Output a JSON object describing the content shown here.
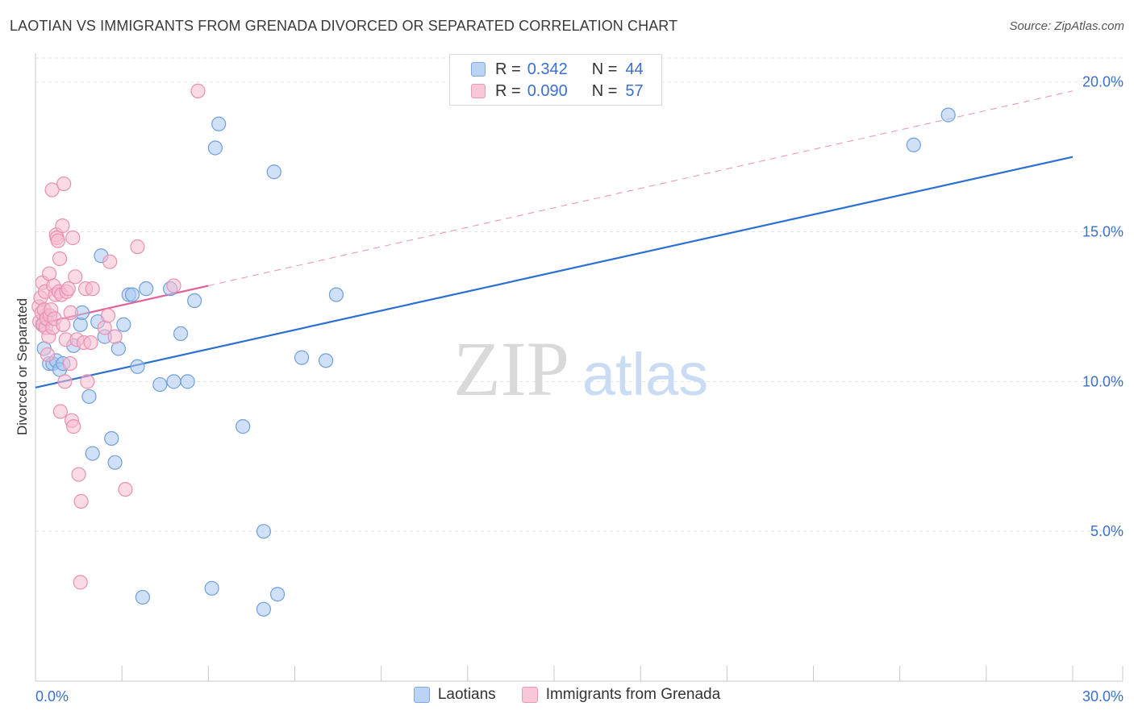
{
  "title": "LAOTIAN VS IMMIGRANTS FROM GRENADA DIVORCED OR SEPARATED CORRELATION CHART",
  "source": "Source: ZipAtlas.com",
  "watermark": {
    "zip": "ZIP",
    "atlas": "atlas"
  },
  "legend": {
    "rows": [
      {
        "r_label": "R =",
        "r_value": "0.342",
        "n_label": "N =",
        "n_value": "44"
      },
      {
        "r_label": "R =",
        "r_value": "0.090",
        "n_label": "N =",
        "n_value": "57"
      }
    ]
  },
  "colors": {
    "blue_fill": "#a9c8f0",
    "blue_stroke": "#6f9fdc",
    "blue_line": "#2b6fd0",
    "pink_fill": "#f6bcd0",
    "pink_stroke": "#e98fb0",
    "pink_line": "#e2609a",
    "axis_label": "#3a6fd1",
    "grid": "#e3e3e3"
  },
  "chart_data": {
    "type": "scatter",
    "title": "LAOTIAN VS IMMIGRANTS FROM GRENADA DIVORCED OR SEPARATED CORRELATION CHART",
    "xlabel": "",
    "ylabel": "Divorced or Separated",
    "xlim": [
      0,
      30
    ],
    "ylim": [
      0,
      20.8
    ],
    "x_tick_labels": [
      "0.0%",
      "30.0%"
    ],
    "y_ticks": [
      5,
      10,
      15,
      20
    ],
    "y_tick_labels": [
      "5.0%",
      "10.0%",
      "15.0%",
      "20.0%"
    ],
    "grid": true,
    "legend_position": "top-center",
    "series": [
      {
        "name": "Laotians",
        "color": "#a9c8f0",
        "points": [
          [
            0.2,
            11.9
          ],
          [
            0.25,
            11.1
          ],
          [
            0.3,
            12.2
          ],
          [
            0.4,
            10.6
          ],
          [
            0.5,
            10.6
          ],
          [
            0.6,
            10.7
          ],
          [
            0.7,
            10.4
          ],
          [
            0.8,
            10.6
          ],
          [
            1.1,
            11.2
          ],
          [
            1.3,
            11.9
          ],
          [
            1.35,
            12.3
          ],
          [
            1.55,
            9.5
          ],
          [
            1.65,
            7.6
          ],
          [
            1.8,
            12.0
          ],
          [
            1.9,
            14.2
          ],
          [
            2.0,
            11.5
          ],
          [
            2.2,
            8.1
          ],
          [
            2.3,
            7.3
          ],
          [
            2.4,
            11.1
          ],
          [
            2.55,
            11.9
          ],
          [
            2.7,
            12.9
          ],
          [
            2.8,
            12.9
          ],
          [
            2.95,
            10.5
          ],
          [
            3.1,
            2.8
          ],
          [
            3.2,
            13.1
          ],
          [
            3.6,
            9.9
          ],
          [
            3.9,
            13.1
          ],
          [
            4.0,
            10.0
          ],
          [
            4.2,
            11.6
          ],
          [
            4.4,
            10.0
          ],
          [
            4.6,
            12.7
          ],
          [
            5.1,
            3.1
          ],
          [
            5.2,
            17.8
          ],
          [
            5.3,
            18.6
          ],
          [
            6.0,
            8.5
          ],
          [
            6.6,
            5.0
          ],
          [
            6.6,
            2.4
          ],
          [
            6.9,
            17.0
          ],
          [
            7.0,
            2.9
          ],
          [
            7.7,
            10.8
          ],
          [
            8.4,
            10.7
          ],
          [
            8.7,
            12.9
          ],
          [
            25.4,
            17.9
          ],
          [
            26.4,
            18.9
          ]
        ]
      },
      {
        "name": "Immigrants from Grenada",
        "color": "#f6bcd0",
        "points": [
          [
            0.1,
            12.5
          ],
          [
            0.12,
            12.0
          ],
          [
            0.15,
            12.8
          ],
          [
            0.18,
            12.3
          ],
          [
            0.2,
            13.3
          ],
          [
            0.22,
            11.9
          ],
          [
            0.25,
            12.4
          ],
          [
            0.28,
            13.0
          ],
          [
            0.3,
            11.8
          ],
          [
            0.32,
            12.1
          ],
          [
            0.35,
            10.9
          ],
          [
            0.38,
            11.5
          ],
          [
            0.4,
            13.6
          ],
          [
            0.42,
            12.2
          ],
          [
            0.45,
            12.4
          ],
          [
            0.48,
            16.4
          ],
          [
            0.5,
            11.8
          ],
          [
            0.52,
            13.2
          ],
          [
            0.55,
            12.1
          ],
          [
            0.58,
            12.9
          ],
          [
            0.6,
            14.9
          ],
          [
            0.62,
            14.8
          ],
          [
            0.65,
            14.7
          ],
          [
            0.68,
            13.0
          ],
          [
            0.7,
            14.1
          ],
          [
            0.72,
            9.0
          ],
          [
            0.75,
            12.9
          ],
          [
            0.78,
            15.2
          ],
          [
            0.8,
            11.9
          ],
          [
            0.82,
            16.6
          ],
          [
            0.85,
            10.0
          ],
          [
            0.88,
            11.4
          ],
          [
            0.9,
            13.0
          ],
          [
            0.95,
            13.1
          ],
          [
            1.0,
            10.6
          ],
          [
            1.02,
            12.3
          ],
          [
            1.05,
            8.7
          ],
          [
            1.08,
            14.8
          ],
          [
            1.1,
            8.5
          ],
          [
            1.15,
            13.5
          ],
          [
            1.2,
            11.4
          ],
          [
            1.25,
            6.9
          ],
          [
            1.3,
            3.3
          ],
          [
            1.32,
            6.0
          ],
          [
            1.4,
            11.3
          ],
          [
            1.45,
            13.1
          ],
          [
            1.5,
            10.0
          ],
          [
            1.6,
            11.3
          ],
          [
            1.65,
            13.1
          ],
          [
            2.0,
            11.8
          ],
          [
            2.1,
            12.2
          ],
          [
            2.15,
            14.0
          ],
          [
            2.3,
            11.5
          ],
          [
            2.6,
            6.4
          ],
          [
            2.95,
            14.5
          ],
          [
            4.0,
            13.2
          ],
          [
            4.7,
            19.7
          ]
        ]
      }
    ],
    "trend_lines": [
      {
        "series": "Laotians",
        "x": [
          0,
          30
        ],
        "y": [
          9.8,
          17.5
        ]
      },
      {
        "series": "Immigrants from Grenada",
        "x": [
          0,
          5.0
        ],
        "y": [
          11.9,
          13.2
        ],
        "dashed_extension_to": [
          30,
          19.7
        ]
      }
    ]
  },
  "bottom_legend": [
    {
      "label": "Laotians"
    },
    {
      "label": "Immigrants from Grenada"
    }
  ]
}
